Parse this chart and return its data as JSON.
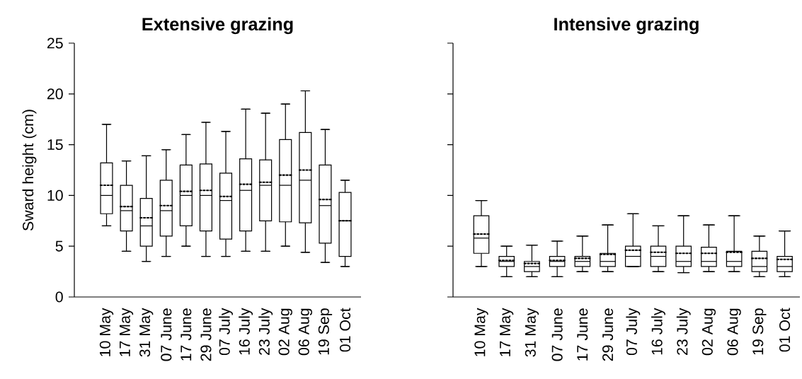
{
  "chart_data": [
    {
      "type": "box",
      "title": "Extensive grazing",
      "ylabel": "Sward height (cm)",
      "ylim": [
        0,
        25
      ],
      "yticks": [
        0,
        5,
        10,
        15,
        20,
        25
      ],
      "categories": [
        "10 May",
        "17 May",
        "31 May",
        "07 June",
        "17 June",
        "29 June",
        "07 July",
        "16 July",
        "23 July",
        "02 Aug",
        "06 Aug",
        "19 Sep",
        "01 Oct"
      ],
      "boxes": [
        {
          "low": 7,
          "q1": 8.2,
          "median": 10,
          "q3": 13.2,
          "high": 17,
          "mean": 11
        },
        {
          "low": 4.5,
          "q1": 6.5,
          "median": 8.5,
          "q3": 11,
          "high": 13.4,
          "mean": 8.9
        },
        {
          "low": 3.5,
          "q1": 5,
          "median": 7,
          "q3": 9.7,
          "high": 13.9,
          "mean": 7.8
        },
        {
          "low": 4,
          "q1": 6,
          "median": 8.5,
          "q3": 11.5,
          "high": 14.5,
          "mean": 9
        },
        {
          "low": 5,
          "q1": 7,
          "median": 10,
          "q3": 13,
          "high": 16,
          "mean": 10.4
        },
        {
          "low": 4,
          "q1": 6.5,
          "median": 10,
          "q3": 13.1,
          "high": 17.2,
          "mean": 10.5
        },
        {
          "low": 4,
          "q1": 5.7,
          "median": 9.5,
          "q3": 12.2,
          "high": 16.3,
          "mean": 9.9
        },
        {
          "low": 4.5,
          "q1": 6.5,
          "median": 10.5,
          "q3": 13.6,
          "high": 18.5,
          "mean": 11.1
        },
        {
          "low": 4.5,
          "q1": 7.5,
          "median": 11,
          "q3": 13.5,
          "high": 18.1,
          "mean": 11.3
        },
        {
          "low": 5,
          "q1": 7.4,
          "median": 11,
          "q3": 15.5,
          "high": 19,
          "mean": 12
        },
        {
          "low": 4.4,
          "q1": 7.3,
          "median": 11.5,
          "q3": 16.2,
          "high": 20.3,
          "mean": 12.5
        },
        {
          "low": 3.4,
          "q1": 5.3,
          "median": 9,
          "q3": 13,
          "high": 16.5,
          "mean": 9.6
        },
        {
          "low": 3,
          "q1": 4,
          "median": 7.5,
          "q3": 10.3,
          "high": 11.5,
          "mean": 7.5
        }
      ]
    },
    {
      "type": "box",
      "title": "Intensive grazing",
      "ylim": [
        0,
        25
      ],
      "yticks": [
        {
          "value": 0,
          "label": null
        },
        {
          "value": 5,
          "label": null
        },
        {
          "value": 10,
          "label": null
        },
        {
          "value": 15,
          "label": null
        },
        {
          "value": 20,
          "label": null
        },
        {
          "value": 25,
          "label": null
        }
      ],
      "tick_labels": "x",
      "categories": [
        "10 May",
        "17 May",
        "31 May",
        "07 June",
        "17 June",
        "29 June",
        "07 July",
        "16 July",
        "23 July",
        "02 Aug",
        "06 Aug",
        "19 Sep",
        "01 Oct"
      ],
      "boxes": [
        {
          "low": 3,
          "q1": 4.3,
          "median": 5.8,
          "q3": 8,
          "high": 9.5,
          "mean": 6.2
        },
        {
          "low": 2,
          "q1": 3,
          "median": 3.5,
          "q3": 4,
          "high": 5,
          "mean": 3.6
        },
        {
          "low": 2,
          "q1": 2.5,
          "median": 3,
          "q3": 3.5,
          "high": 5.1,
          "mean": 3.3
        },
        {
          "low": 2,
          "q1": 3,
          "median": 3.5,
          "q3": 4,
          "high": 5.5,
          "mean": 3.6
        },
        {
          "low": 2.5,
          "q1": 3,
          "median": 3.5,
          "q3": 4,
          "high": 6,
          "mean": 3.8
        },
        {
          "low": 2.5,
          "q1": 3,
          "median": 3.5,
          "q3": 4.3,
          "high": 7.1,
          "mean": 4.2
        },
        {
          "low": 3,
          "q1": 3,
          "median": 4,
          "q3": 5,
          "high": 8.2,
          "mean": 4.6
        },
        {
          "low": 2.5,
          "q1": 3,
          "median": 4,
          "q3": 5,
          "high": 7,
          "mean": 4.4
        },
        {
          "low": 2.4,
          "q1": 3,
          "median": 3.5,
          "q3": 5,
          "high": 8,
          "mean": 4.3
        },
        {
          "low": 2.5,
          "q1": 3,
          "median": 3.5,
          "q3": 4.9,
          "high": 7.1,
          "mean": 4.3
        },
        {
          "low": 2.5,
          "q1": 3,
          "median": 3.5,
          "q3": 4.5,
          "high": 8,
          "mean": 4.4
        },
        {
          "low": 2,
          "q1": 2.5,
          "median": 3,
          "q3": 4.5,
          "high": 6,
          "mean": 3.8
        },
        {
          "low": 2,
          "q1": 2.5,
          "median": 3,
          "q3": 4,
          "high": 6.5,
          "mean": 3.7
        }
      ]
    }
  ]
}
